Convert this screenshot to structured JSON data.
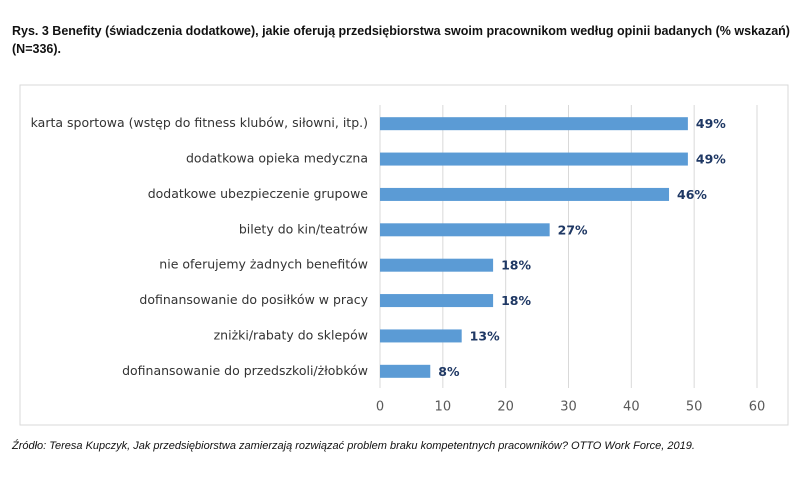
{
  "chart_data": {
    "type": "barh",
    "title": "Rys. 3 Benefity (świadczenia dodatkowe), jakie oferują przedsiębiorstwa swoim pracownikom według opinii badanych (% wskazań) (N=336).",
    "source": "Źródło: Teresa Kupczyk, Jak przedsiębiorstwa zamierzają rozwiązać problem braku kompetentnych pracowników? OTTO Work Force, 2019.",
    "categories": [
      "karta sportowa (wstęp do fitness klubów, siłowni, itp.)",
      "dodatkowa opieka medyczna",
      "dodatkowe ubezpieczenie grupowe",
      "bilety do kin/teatrów",
      "nie oferujemy żadnych benefitów",
      "dofinansowanie do posiłków w pracy",
      "zniżki/rabaty do sklepów",
      "dofinansowanie do przedszkoli/żłobków"
    ],
    "values": [
      49,
      49,
      46,
      27,
      18,
      18,
      13,
      8
    ],
    "value_labels": [
      "49%",
      "49%",
      "46%",
      "27%",
      "18%",
      "18%",
      "13%",
      "8%"
    ],
    "color": "#5b9bd5",
    "xlim": [
      0,
      60
    ],
    "xticks": [
      0,
      10,
      20,
      30,
      40,
      50,
      60
    ],
    "grid": true
  }
}
